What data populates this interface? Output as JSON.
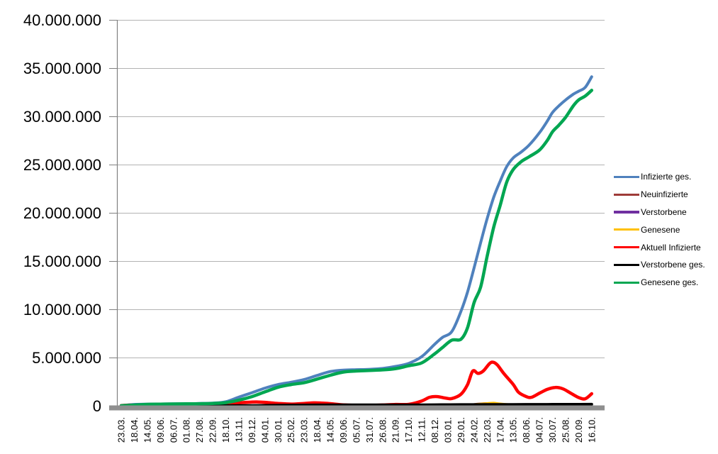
{
  "window": {
    "background": "#ffffff",
    "title": ""
  },
  "styles": {
    "grid_color": "#b3b3b3",
    "axis_color": "#808080",
    "axis_bar_color": "#8f8f8f",
    "text_color": "#000000"
  },
  "chart_data": {
    "type": "line",
    "title": "",
    "xlabel": "",
    "ylabel": "",
    "grid": "horizontal",
    "legend_position": "right",
    "x_label_rotation_deg": -90,
    "y_axis": {
      "min": 0,
      "max": 40000000,
      "tick_interval": 5000000
    },
    "y_tick_labels": [
      "40.000.000",
      "35.000.000",
      "30.000.000",
      "25.000.000",
      "20.000.000",
      "15.000.000",
      "10.000.000",
      "5.000.000",
      "0"
    ],
    "x_tick_labels": [
      "23.03.",
      "18.04.",
      "14.05.",
      "09.06.",
      "06.07.",
      "01.08.",
      "27.08.",
      "22.09.",
      "18.10.",
      "13.11.",
      "09.12.",
      "04.01.",
      "30.01.",
      "25.02.",
      "23.03.",
      "18.04.",
      "14.05.",
      "09.06.",
      "05.07.",
      "31.07.",
      "26.08.",
      "21.09.",
      "17.10.",
      "12.11.",
      "08.12.",
      "03.01.",
      "29.01.",
      "24.02.",
      "22.03.",
      "17.04.",
      "13.05.",
      "08.06.",
      "04.07.",
      "30.07.",
      "25.08.",
      "20.09.",
      "16.10."
    ],
    "value_unit": "millions_of_people",
    "point_format": "[x_category_index, value_in_millions]",
    "series": [
      {
        "name": "Infizierte ges.",
        "color": "#4F81BD",
        "width": 4,
        "points": [
          [
            0,
            0.03
          ],
          [
            1,
            0.14
          ],
          [
            2,
            0.17
          ],
          [
            3,
            0.186
          ],
          [
            4,
            0.197
          ],
          [
            5,
            0.21
          ],
          [
            6,
            0.24
          ],
          [
            7,
            0.28
          ],
          [
            8,
            0.42
          ],
          [
            9,
            0.9
          ],
          [
            10,
            1.35
          ],
          [
            11,
            1.83
          ],
          [
            12,
            2.2
          ],
          [
            13,
            2.44
          ],
          [
            14,
            2.73
          ],
          [
            15,
            3.15
          ],
          [
            16,
            3.55
          ],
          [
            17,
            3.7
          ],
          [
            18,
            3.74
          ],
          [
            19,
            3.78
          ],
          [
            20,
            3.87
          ],
          [
            21,
            4.08
          ],
          [
            22,
            4.4
          ],
          [
            23,
            5.1
          ],
          [
            24,
            6.4
          ],
          [
            24.6,
            7.1
          ],
          [
            25.3,
            7.7
          ],
          [
            26,
            9.8
          ],
          [
            26.5,
            11.8
          ],
          [
            27,
            14.3
          ],
          [
            27.5,
            16.9
          ],
          [
            28,
            19.4
          ],
          [
            28.5,
            21.6
          ],
          [
            29,
            23.3
          ],
          [
            29.5,
            24.8
          ],
          [
            30,
            25.7
          ],
          [
            30.6,
            26.3
          ],
          [
            31.2,
            27.0
          ],
          [
            32,
            28.3
          ],
          [
            32.6,
            29.5
          ],
          [
            33,
            30.4
          ],
          [
            33.5,
            31.1
          ],
          [
            34,
            31.7
          ],
          [
            34.6,
            32.3
          ],
          [
            35,
            32.6
          ],
          [
            35.5,
            33.0
          ],
          [
            36,
            34.1
          ]
        ]
      },
      {
        "name": "Neuinfizierte",
        "color": "#9E3B38",
        "width": 2.5,
        "points": [
          [
            0,
            0.002
          ],
          [
            8,
            0.004
          ],
          [
            9,
            0.016
          ],
          [
            10,
            0.022
          ],
          [
            11,
            0.016
          ],
          [
            12,
            0.009
          ],
          [
            13,
            0.006
          ],
          [
            14,
            0.01
          ],
          [
            15,
            0.012
          ],
          [
            16,
            0.007
          ],
          [
            17,
            0.003
          ],
          [
            21,
            0.006
          ],
          [
            22,
            0.008
          ],
          [
            23,
            0.03
          ],
          [
            24,
            0.045
          ],
          [
            25,
            0.04
          ],
          [
            26,
            0.09
          ],
          [
            27,
            0.18
          ],
          [
            28,
            0.28
          ],
          [
            29,
            0.15
          ],
          [
            30,
            0.05
          ],
          [
            31,
            0.04
          ],
          [
            32,
            0.07
          ],
          [
            33,
            0.07
          ],
          [
            34,
            0.05
          ],
          [
            35,
            0.03
          ],
          [
            36,
            0.09
          ]
        ]
      },
      {
        "name": "Verstorbene",
        "color": "#7030A0",
        "width": 2.5,
        "points": [
          [
            0,
            0.0
          ],
          [
            10,
            0.003
          ],
          [
            12,
            0.004
          ],
          [
            14,
            0.002
          ],
          [
            22,
            0.001
          ],
          [
            24,
            0.002
          ],
          [
            26,
            0.002
          ],
          [
            28,
            0.002
          ],
          [
            30,
            0.001
          ],
          [
            33,
            0.001
          ],
          [
            36,
            0.001
          ]
        ]
      },
      {
        "name": "Genesene",
        "color": "#FFC000",
        "width": 2.5,
        "points": [
          [
            0,
            0.001
          ],
          [
            8,
            0.004
          ],
          [
            9,
            0.012
          ],
          [
            10,
            0.018
          ],
          [
            11,
            0.016
          ],
          [
            12,
            0.01
          ],
          [
            13,
            0.007
          ],
          [
            14,
            0.01
          ],
          [
            15,
            0.013
          ],
          [
            16,
            0.009
          ],
          [
            17,
            0.004
          ],
          [
            20,
            0.003
          ],
          [
            21,
            0.005
          ],
          [
            22,
            0.006
          ],
          [
            23,
            0.015
          ],
          [
            24,
            0.025
          ],
          [
            25,
            0.028
          ],
          [
            26,
            0.08
          ],
          [
            27,
            0.16
          ],
          [
            28,
            0.28
          ],
          [
            28.5,
            0.32
          ],
          [
            29,
            0.24
          ],
          [
            30,
            0.13
          ],
          [
            31,
            0.06
          ],
          [
            32,
            0.09
          ],
          [
            33,
            0.11
          ],
          [
            34,
            0.07
          ],
          [
            35,
            0.04
          ],
          [
            36,
            0.1
          ]
        ]
      },
      {
        "name": "Aktuell Infizierte",
        "color": "#FF0000",
        "width": 4.5,
        "points": [
          [
            0,
            0.025
          ],
          [
            0.5,
            0.06
          ],
          [
            1,
            0.05
          ],
          [
            1.5,
            0.028
          ],
          [
            2,
            0.014
          ],
          [
            3,
            0.007
          ],
          [
            4,
            0.006
          ],
          [
            5,
            0.01
          ],
          [
            6,
            0.016
          ],
          [
            7,
            0.03
          ],
          [
            8,
            0.09
          ],
          [
            9,
            0.3
          ],
          [
            10,
            0.38
          ],
          [
            10.5,
            0.39
          ],
          [
            11,
            0.36
          ],
          [
            12,
            0.24
          ],
          [
            13,
            0.18
          ],
          [
            14,
            0.24
          ],
          [
            14.7,
            0.3
          ],
          [
            15.3,
            0.29
          ],
          [
            16,
            0.22
          ],
          [
            17,
            0.09
          ],
          [
            18,
            0.045
          ],
          [
            19,
            0.035
          ],
          [
            20,
            0.08
          ],
          [
            21,
            0.14
          ],
          [
            22,
            0.15
          ],
          [
            23,
            0.5
          ],
          [
            23.6,
            0.88
          ],
          [
            24.2,
            0.95
          ],
          [
            24.8,
            0.8
          ],
          [
            25.3,
            0.75
          ],
          [
            26,
            1.2
          ],
          [
            26.5,
            2.2
          ],
          [
            26.9,
            3.6
          ],
          [
            27.3,
            3.35
          ],
          [
            27.7,
            3.6
          ],
          [
            28.2,
            4.4
          ],
          [
            28.5,
            4.5
          ],
          [
            28.8,
            4.2
          ],
          [
            29.3,
            3.3
          ],
          [
            30,
            2.2
          ],
          [
            30.4,
            1.4
          ],
          [
            31,
            0.95
          ],
          [
            31.4,
            0.88
          ],
          [
            32,
            1.3
          ],
          [
            32.6,
            1.7
          ],
          [
            33.2,
            1.9
          ],
          [
            33.8,
            1.75
          ],
          [
            34.4,
            1.3
          ],
          [
            35,
            0.85
          ],
          [
            35.5,
            0.72
          ],
          [
            36,
            1.25
          ]
        ]
      },
      {
        "name": "Verstorbene ges.",
        "color": "#000000",
        "width": 4,
        "points": [
          [
            0,
            0.0
          ],
          [
            4,
            0.009
          ],
          [
            8,
            0.01
          ],
          [
            9,
            0.013
          ],
          [
            10,
            0.021
          ],
          [
            11,
            0.035
          ],
          [
            12,
            0.057
          ],
          [
            13,
            0.069
          ],
          [
            14,
            0.076
          ],
          [
            15,
            0.081
          ],
          [
            16,
            0.086
          ],
          [
            17,
            0.09
          ],
          [
            18,
            0.091
          ],
          [
            19,
            0.092
          ],
          [
            20,
            0.093
          ],
          [
            21,
            0.093
          ],
          [
            22,
            0.095
          ],
          [
            23,
            0.098
          ],
          [
            24,
            0.104
          ],
          [
            25,
            0.112
          ],
          [
            26,
            0.117
          ],
          [
            27,
            0.121
          ],
          [
            28,
            0.126
          ],
          [
            29,
            0.132
          ],
          [
            30,
            0.136
          ],
          [
            31,
            0.139
          ],
          [
            32,
            0.141
          ],
          [
            33,
            0.144
          ],
          [
            34,
            0.147
          ],
          [
            35,
            0.15
          ],
          [
            36,
            0.154
          ]
        ]
      },
      {
        "name": "Genesene ges.",
        "color": "#00A651",
        "width": 4.5,
        "points": [
          [
            0,
            0.01
          ],
          [
            1,
            0.072
          ],
          [
            2,
            0.145
          ],
          [
            3,
            0.17
          ],
          [
            4,
            0.185
          ],
          [
            5,
            0.195
          ],
          [
            6,
            0.215
          ],
          [
            7,
            0.245
          ],
          [
            8,
            0.32
          ],
          [
            9,
            0.58
          ],
          [
            10,
            0.95
          ],
          [
            11,
            1.44
          ],
          [
            12,
            1.92
          ],
          [
            13,
            2.2
          ],
          [
            14,
            2.4
          ],
          [
            15,
            2.77
          ],
          [
            16,
            3.16
          ],
          [
            17,
            3.49
          ],
          [
            18,
            3.6
          ],
          [
            19,
            3.66
          ],
          [
            20,
            3.72
          ],
          [
            21,
            3.85
          ],
          [
            22,
            4.15
          ],
          [
            23,
            4.45
          ],
          [
            24,
            5.4
          ],
          [
            24.6,
            6.06
          ],
          [
            25.3,
            6.8
          ],
          [
            26,
            6.9
          ],
          [
            26.5,
            8.1
          ],
          [
            27,
            10.7
          ],
          [
            27.5,
            12.3
          ],
          [
            28,
            15.5
          ],
          [
            28.5,
            18.5
          ],
          [
            29,
            20.8
          ],
          [
            29.5,
            23.2
          ],
          [
            30,
            24.5
          ],
          [
            30.6,
            25.3
          ],
          [
            31.2,
            25.8
          ],
          [
            32,
            26.5
          ],
          [
            32.6,
            27.5
          ],
          [
            33,
            28.4
          ],
          [
            33.5,
            29.1
          ],
          [
            34,
            29.9
          ],
          [
            34.6,
            31.1
          ],
          [
            35,
            31.7
          ],
          [
            35.5,
            32.1
          ],
          [
            36,
            32.7
          ]
        ]
      }
    ]
  }
}
